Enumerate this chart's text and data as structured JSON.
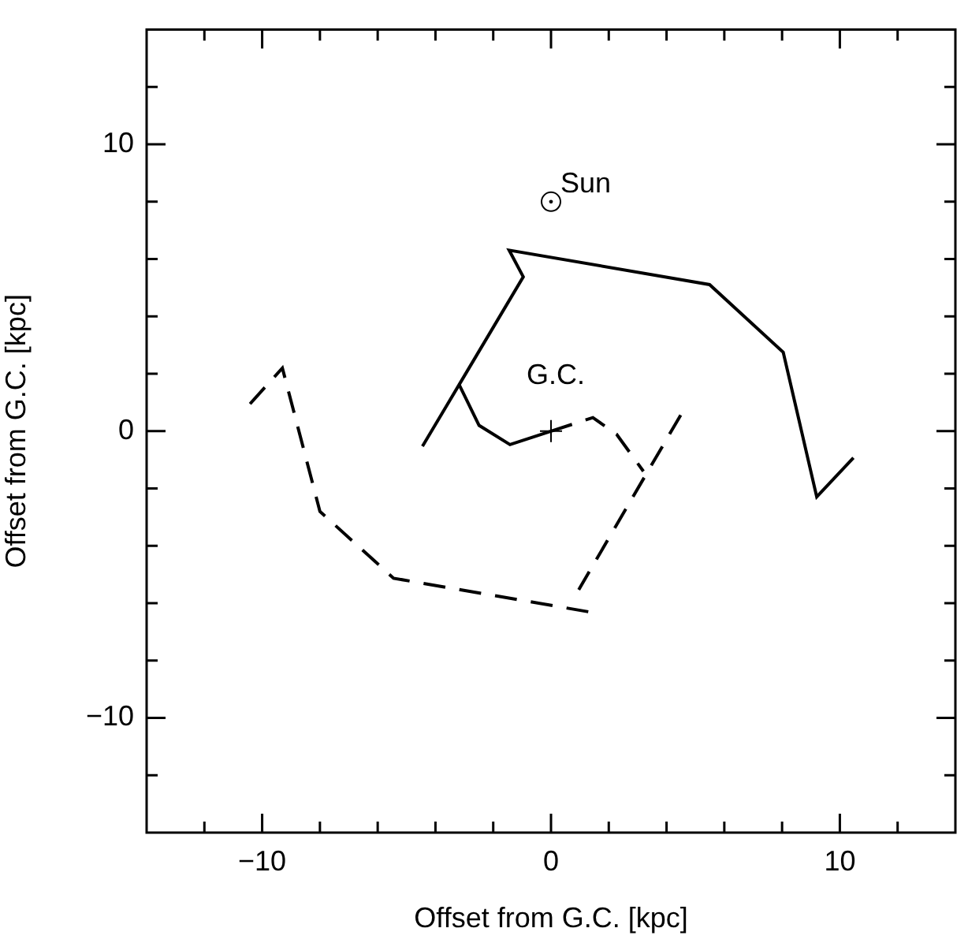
{
  "chart_data": {
    "type": "line",
    "xlabel": "Offset from G.C. [kpc]",
    "ylabel": "Offset from G.C. [kpc]",
    "xlim": [
      -14,
      14
    ],
    "ylim": [
      -14,
      14
    ],
    "xticks": [
      {
        "value": -12,
        "label": null
      },
      -10,
      {
        "value": -8,
        "label": null
      },
      {
        "value": -6,
        "label": null
      },
      {
        "value": -4,
        "label": null
      },
      {
        "value": -2,
        "label": null
      },
      0,
      {
        "value": 2,
        "label": null
      },
      {
        "value": 4,
        "label": null
      },
      {
        "value": 6,
        "label": null
      },
      {
        "value": 8,
        "label": null
      },
      10,
      {
        "value": 12,
        "label": null
      }
    ],
    "yticks": [
      {
        "value": -12,
        "label": null
      },
      -10,
      {
        "value": -8,
        "label": null
      },
      {
        "value": -6,
        "label": null
      },
      {
        "value": -4,
        "label": null
      },
      {
        "value": -2,
        "label": null
      },
      0,
      {
        "value": 2,
        "label": null
      },
      {
        "value": 4,
        "label": null
      },
      {
        "value": 6,
        "label": null
      },
      {
        "value": 8,
        "label": null
      },
      10,
      {
        "value": 12,
        "label": null
      }
    ],
    "grid": false,
    "legend": false,
    "series": [
      {
        "type": "line",
        "color": "#000000",
        "line_style": "solid",
        "x": [
          10.47,
          9.2,
          8.04,
          5.49,
          -1.45,
          -0.96,
          -3.18,
          -4.45
        ],
        "values": [
          -0.93,
          -2.29,
          2.75,
          5.11,
          6.31,
          5.38,
          1.62,
          -0.53
        ]
      },
      {
        "type": "line",
        "color": "#000000",
        "line_style": "solid",
        "x": [
          -3.18,
          -2.49,
          -1.42,
          0
        ],
        "values": [
          1.62,
          0.2,
          -0.47,
          0
        ]
      },
      {
        "type": "line",
        "color": "#000000",
        "line_style": "dashed",
        "x": [
          0,
          1.45,
          2.27,
          3.2
        ],
        "values": [
          0,
          0.47,
          -0.11,
          -1.4
        ]
      },
      {
        "type": "line",
        "color": "#000000",
        "line_style": "dashed",
        "x": [
          4.49,
          0.96
        ],
        "values": [
          0.56,
          -5.53
        ]
      },
      {
        "type": "line",
        "color": "#000000",
        "line_style": "dashed",
        "x": [
          -10.42,
          -9.3,
          -8.0,
          -5.45,
          1.36
        ],
        "values": [
          0.95,
          2.2,
          -2.8,
          -5.13,
          -6.31
        ]
      },
      {
        "type": "scatter",
        "color": "#000000",
        "marker": "circle",
        "x": [
          0
        ],
        "values": [
          8
        ]
      },
      {
        "type": "scatter",
        "color": "#000000",
        "marker": "cross",
        "x": [
          0
        ],
        "values": [
          0
        ]
      }
    ],
    "annotations": [
      {
        "text": "Sun",
        "x": 0,
        "y": 8
      },
      {
        "text": "G.C.",
        "x": 0,
        "y": 0
      }
    ]
  }
}
